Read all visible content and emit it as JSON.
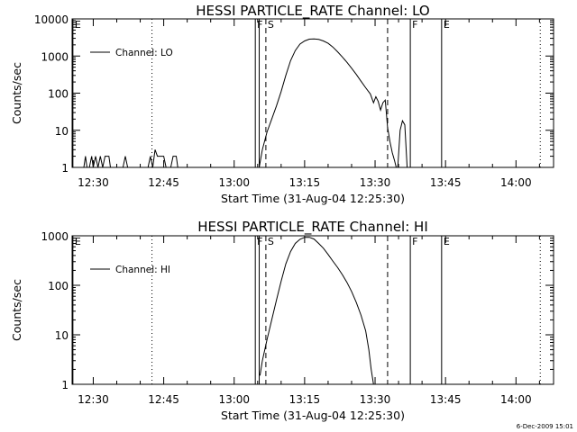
{
  "chart_data": [
    {
      "type": "line",
      "title": "HESSI PARTICLE_RATE Channel: LO",
      "xlabel": "Start Time (31-Aug-04 12:25:30)",
      "ylabel": "Counts/sec",
      "yscale": "log",
      "x_unit": "time (HH:MM)",
      "xlim": [
        "12:25:30",
        "14:08:00"
      ],
      "ylim": [
        1,
        10000
      ],
      "x_ticks": [
        "12:30",
        "12:45",
        "13:00",
        "13:15",
        "13:30",
        "13:45",
        "14:00"
      ],
      "y_ticks": [
        "1",
        "10",
        "100",
        "1000",
        "10000"
      ],
      "legend": {
        "label": "Channel: LO",
        "position": "top-left"
      },
      "grid": false,
      "markers": [
        {
          "time": "12:25:40",
          "label": "E",
          "style": "solid"
        },
        {
          "time": "12:42:30",
          "label": "",
          "style": "dotted"
        },
        {
          "time": "13:04:30",
          "label": "F",
          "style": "solid"
        },
        {
          "time": "13:05:20",
          "label": "",
          "style": "solid"
        },
        {
          "time": "13:06:45",
          "label": "S",
          "style": "dashed"
        },
        {
          "time": "13:32:40",
          "label": "",
          "style": "dashed"
        },
        {
          "time": "13:37:30",
          "label": "F",
          "style": "solid"
        },
        {
          "time": "13:44:10",
          "label": "E",
          "style": "solid"
        },
        {
          "time": "14:05:10",
          "label": "",
          "style": "dotted"
        }
      ],
      "series": [
        {
          "name": "Channel: LO",
          "segments": [
            [
              [
                "12:27:00",
                1
              ],
              [
                "12:28:00",
                1
              ],
              [
                "12:28:20",
                2
              ],
              [
                "12:28:40",
                1
              ],
              [
                "12:29:10",
                1
              ],
              [
                "12:29:40",
                2
              ],
              [
                "12:30:00",
                1
              ],
              [
                "12:30:30",
                2
              ],
              [
                "12:31:00",
                1
              ],
              [
                "12:31:30",
                2
              ],
              [
                "12:32:00",
                1
              ],
              [
                "12:32:30",
                2
              ],
              [
                "12:33:20",
                2
              ],
              [
                "12:33:40",
                1
              ],
              [
                "12:36:20",
                1
              ],
              [
                "12:36:50",
                2
              ],
              [
                "12:37:20",
                1
              ],
              [
                "12:41:40",
                1
              ],
              [
                "12:42:10",
                2
              ],
              [
                "12:42:40",
                1
              ],
              [
                "12:43:10",
                3
              ],
              [
                "12:43:40",
                2
              ],
              [
                "12:45:00",
                2
              ],
              [
                "12:45:30",
                1
              ],
              [
                "12:46:30",
                1
              ],
              [
                "12:47:00",
                2
              ],
              [
                "12:47:40",
                2
              ],
              [
                "12:48:00",
                1
              ]
            ],
            [
              [
                "13:05:20",
                1
              ],
              [
                "13:06:00",
                3
              ],
              [
                "13:07:00",
                9
              ],
              [
                "13:08:00",
                20
              ],
              [
                "13:09:00",
                45
              ],
              [
                "13:10:00",
                110
              ],
              [
                "13:11:00",
                300
              ],
              [
                "13:12:00",
                750
              ],
              [
                "13:13:00",
                1400
              ],
              [
                "13:14:00",
                2100
              ],
              [
                "13:15:00",
                2550
              ],
              [
                "13:16:00",
                2850
              ],
              [
                "13:17:00",
                2900
              ],
              [
                "13:18:00",
                2800
              ],
              [
                "13:19:00",
                2550
              ],
              [
                "13:20:00",
                2200
              ],
              [
                "13:21:00",
                1750
              ],
              [
                "13:22:00",
                1300
              ],
              [
                "13:23:00",
                950
              ],
              [
                "13:24:00",
                680
              ],
              [
                "13:25:00",
                470
              ],
              [
                "13:26:00",
                320
              ],
              [
                "13:27:00",
                210
              ],
              [
                "13:28:00",
                140
              ],
              [
                "13:29:00",
                95
              ],
              [
                "13:29:40",
                55
              ],
              [
                "13:30:10",
                80
              ],
              [
                "13:30:40",
                60
              ],
              [
                "13:31:10",
                35
              ],
              [
                "13:31:40",
                55
              ],
              [
                "13:32:10",
                65
              ],
              [
                "13:32:40",
                12
              ],
              [
                "13:33:10",
                5
              ],
              [
                "13:33:40",
                2.5
              ],
              [
                "13:34:10",
                1.5
              ],
              [
                "13:34:30",
                1
              ]
            ],
            [
              [
                "13:34:50",
                1
              ],
              [
                "13:35:20",
                10
              ],
              [
                "13:35:50",
                18
              ],
              [
                "13:36:20",
                14
              ],
              [
                "13:36:50",
                1
              ]
            ]
          ]
        }
      ]
    },
    {
      "type": "line",
      "title": "HESSI PARTICLE_RATE Channel: HI",
      "xlabel": "Start Time (31-Aug-04 12:25:30)",
      "ylabel": "Counts/sec",
      "yscale": "log",
      "x_unit": "time (HH:MM)",
      "xlim": [
        "12:25:30",
        "14:08:00"
      ],
      "ylim": [
        1,
        1000
      ],
      "x_ticks": [
        "12:30",
        "12:45",
        "13:00",
        "13:15",
        "13:30",
        "13:45",
        "14:00"
      ],
      "y_ticks": [
        "1",
        "10",
        "100",
        "1000"
      ],
      "legend": {
        "label": "Channel: HI",
        "position": "top-left"
      },
      "grid": false,
      "markers": [
        {
          "time": "12:25:40",
          "label": "E",
          "style": "solid"
        },
        {
          "time": "12:42:30",
          "label": "",
          "style": "dotted"
        },
        {
          "time": "13:04:30",
          "label": "F",
          "style": "solid"
        },
        {
          "time": "13:05:20",
          "label": "",
          "style": "solid"
        },
        {
          "time": "13:06:45",
          "label": "S",
          "style": "dashed"
        },
        {
          "time": "13:32:40",
          "label": "",
          "style": "dashed"
        },
        {
          "time": "13:37:30",
          "label": "F",
          "style": "solid"
        },
        {
          "time": "13:44:10",
          "label": "E",
          "style": "solid"
        },
        {
          "time": "14:05:10",
          "label": "",
          "style": "dotted"
        }
      ],
      "series": [
        {
          "name": "Channel: HI",
          "segments": [
            [
              [
                "13:05:30",
                1.5
              ],
              [
                "13:06:00",
                3
              ],
              [
                "13:07:00",
                8
              ],
              [
                "13:08:00",
                20
              ],
              [
                "13:09:00",
                50
              ],
              [
                "13:10:00",
                120
              ],
              [
                "13:11:00",
                270
              ],
              [
                "13:12:00",
                480
              ],
              [
                "13:13:00",
                700
              ],
              [
                "13:14:00",
                850
              ],
              [
                "13:15:00",
                930
              ],
              [
                "13:16:00",
                930
              ],
              [
                "13:17:00",
                860
              ],
              [
                "13:18:00",
                700
              ],
              [
                "13:19:00",
                560
              ],
              [
                "13:20:00",
                420
              ],
              [
                "13:21:00",
                310
              ],
              [
                "13:22:00",
                230
              ],
              [
                "13:23:00",
                165
              ],
              [
                "13:24:00",
                115
              ],
              [
                "13:25:00",
                75
              ],
              [
                "13:26:00",
                45
              ],
              [
                "13:27:00",
                25
              ],
              [
                "13:28:00",
                12
              ],
              [
                "13:28:40",
                5
              ],
              [
                "13:29:10",
                2
              ],
              [
                "13:29:40",
                1
              ]
            ]
          ]
        }
      ]
    }
  ],
  "footer": {
    "timestamp": "6-Dec-2009 15:01"
  }
}
